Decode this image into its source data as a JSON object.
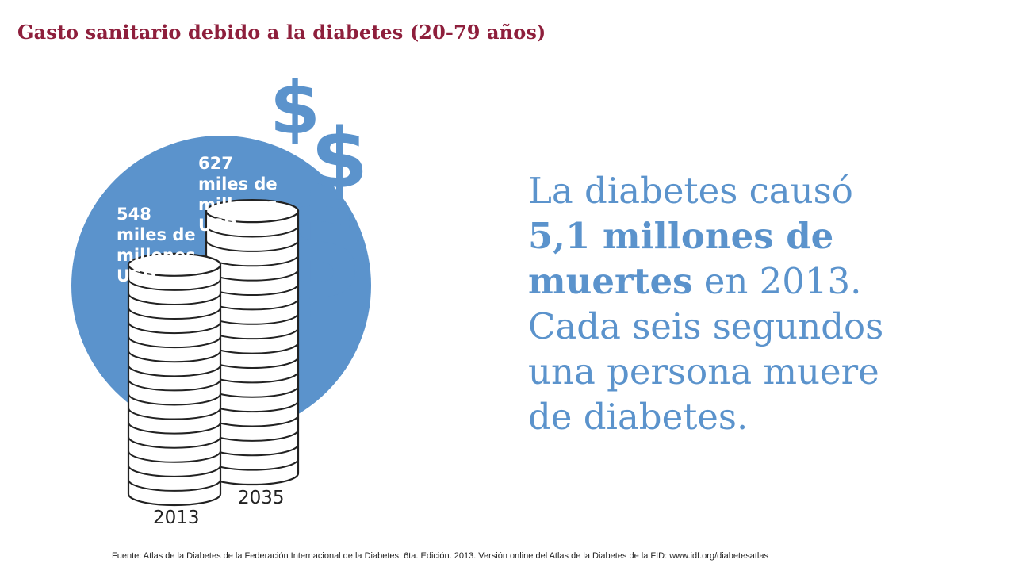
{
  "title": "Gasto sanitario debido a la diabetes (20-79 años)",
  "colors": {
    "title": "#8e1f3c",
    "circle": "#5b93cc",
    "text_blue": "#5b93cc",
    "coin_stroke": "#222222"
  },
  "icons": [
    "dollar-sign-icon",
    "dollar-sign-icon",
    "dollar-sign-icon"
  ],
  "chart_data": {
    "type": "bar",
    "categories": [
      "2013",
      "2035"
    ],
    "values": [
      548,
      627
    ],
    "value_labels": [
      [
        "548",
        "miles de",
        "millones",
        "USD"
      ],
      [
        "627",
        "miles de",
        "millones",
        "USD"
      ]
    ],
    "ylim": [
      0,
      700
    ]
  },
  "statement": {
    "line1": "La diabetes causó",
    "line2": "5,1 millones de",
    "line3_bold": "muertes",
    "line3_rest": " en 2013.",
    "line4": "Cada seis segundos",
    "line5": "una persona muere",
    "line6": "de diabetes."
  },
  "source": "Fuente: Atlas de la Diabetes de la Federación Internacional  de la Diabetes. 6ta. Edición. 2013. Versión online del Atlas de la Diabetes de la FID: www.idf.org/diabetesatlas"
}
